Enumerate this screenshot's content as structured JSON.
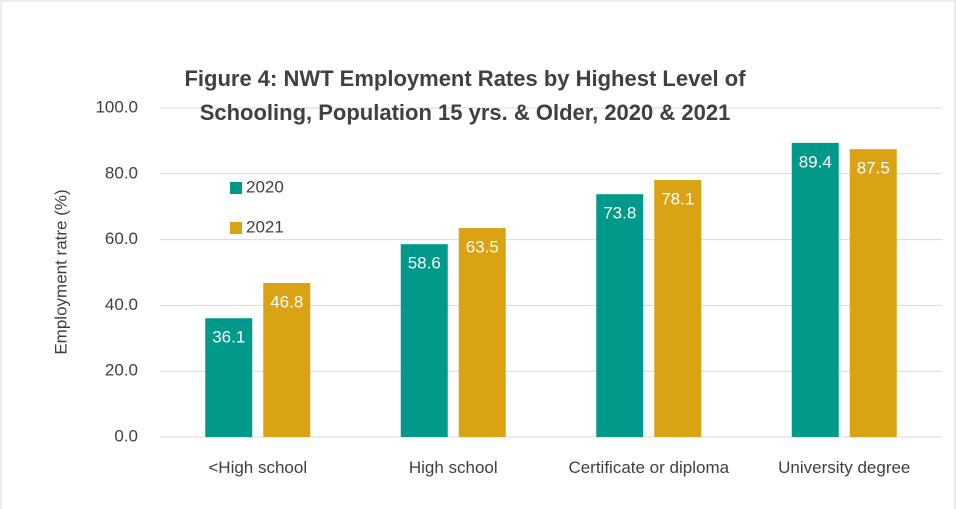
{
  "chart_data": {
    "type": "bar",
    "title": "Figure 4: NWT Employment Rates by Highest Level of Schooling, Population 15 yrs. & Older, 2020 & 2021",
    "y_label": "Employment ratre (%)",
    "categories": [
      "<High school",
      "High school",
      "Certificate or diploma",
      "University degree"
    ],
    "series": [
      {
        "name": "2020",
        "color": "#00998a",
        "values": [
          36.1,
          58.6,
          73.8,
          89.4
        ]
      },
      {
        "name": "2021",
        "color": "#daa314",
        "values": [
          46.8,
          63.5,
          78.1,
          87.5
        ]
      }
    ],
    "ylim": [
      0,
      100
    ],
    "yticks": [
      {
        "value": 0,
        "label": "0.0"
      },
      {
        "value": 20,
        "label": "20.0"
      },
      {
        "value": 40,
        "label": "40.0"
      },
      {
        "value": 60,
        "label": "60.0"
      },
      {
        "value": 80,
        "label": "80.0"
      },
      {
        "value": 100,
        "label": "100.0"
      }
    ],
    "grid": true,
    "legend": "upper left"
  }
}
